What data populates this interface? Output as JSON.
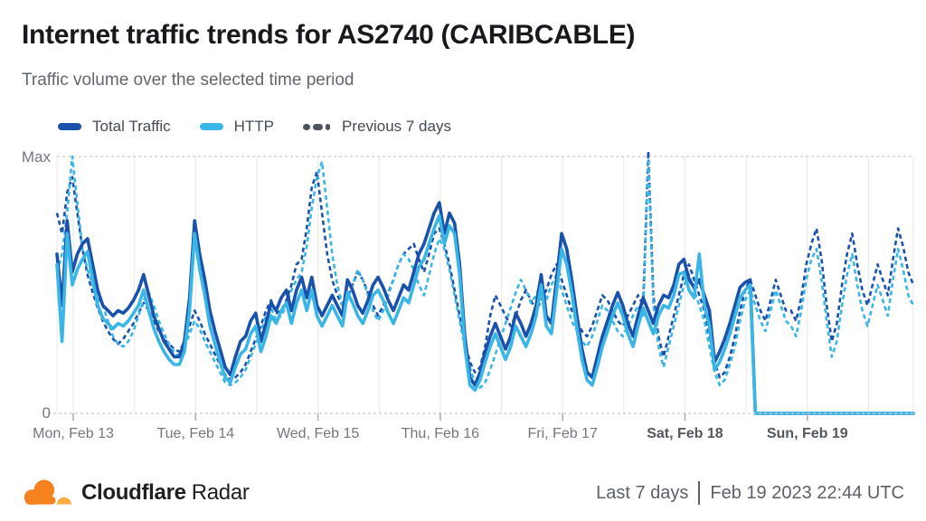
{
  "title": "Internet traffic trends for AS2740 (CARIBCABLE)",
  "subtitle": "Traffic volume over the selected time period",
  "legend": {
    "total_label": "Total Traffic",
    "http_label": "HTTP",
    "previous_label": "Previous 7 days"
  },
  "colors": {
    "total_traffic": "#1a52ab",
    "http": "#3ab6e6",
    "previous": "#4d545e",
    "grid": "#e5e7ea",
    "axis_dash": "#c7cbd1",
    "tick": "#a6abb3",
    "logo_orange": "#F6821F",
    "logo_light_orange": "#FBAD41"
  },
  "footer": {
    "brand_bold": "Cloudflare",
    "brand_regular": "Radar",
    "range_label": "Last 7 days",
    "timestamp": "Feb 19 2023 22:44 UTC"
  },
  "chart_data": {
    "type": "line",
    "title": "Internet traffic trends for AS2740 (CARIBCABLE)",
    "ylabel": "",
    "xlabel": "",
    "y_axis": {
      "max_label": "Max",
      "min_label": "0",
      "range": [
        0,
        100
      ],
      "unit": "percent_of_max"
    },
    "x_range_hours": 168,
    "tick_offset_hours": 3.2,
    "tick_interval_hours": 24,
    "gridline_interval_hours": 12,
    "grid": true,
    "legend_position": "top",
    "x_ticks": [
      {
        "label": "Mon, Feb 13",
        "bold": false
      },
      {
        "label": "Tue, Feb 14",
        "bold": false
      },
      {
        "label": "Wed, Feb 15",
        "bold": false
      },
      {
        "label": "Thu, Feb 16",
        "bold": false
      },
      {
        "label": "Fri, Feb 17",
        "bold": false
      },
      {
        "label": "Sat, Feb 18",
        "bold": true
      },
      {
        "label": "Sun, Feb 19",
        "bold": true
      }
    ],
    "series": [
      {
        "id": "previous-total-line",
        "name": "Total Traffic (previous 7 days)",
        "style": "dashed",
        "color": "#1a52ab",
        "values": [
          78,
          70,
          86,
          92,
          78,
          64,
          54,
          47,
          41,
          36,
          32,
          29,
          27,
          29,
          32,
          35,
          39,
          43,
          40,
          36,
          32,
          29,
          27,
          25,
          24,
          28,
          34,
          40,
          36,
          31,
          27,
          23,
          19,
          15,
          13,
          14,
          16,
          19,
          24,
          29,
          34,
          40,
          44,
          39,
          40,
          44,
          50,
          58,
          60,
          72,
          88,
          94,
          78,
          62,
          52,
          46,
          42,
          45,
          50,
          55,
          52,
          47,
          42,
          38,
          42,
          47,
          52,
          58,
          62,
          64,
          66,
          60,
          55,
          62,
          70,
          72,
          66,
          58,
          48,
          38,
          28,
          20,
          16,
          18,
          26,
          38,
          46,
          42,
          38,
          34,
          38,
          44,
          48,
          44,
          40,
          44,
          48,
          54,
          58,
          52,
          46,
          40,
          36,
          32,
          30,
          34,
          40,
          46,
          44,
          40,
          36,
          34,
          38,
          42,
          46,
          42,
          102,
          46,
          30,
          22,
          30,
          38,
          46,
          54,
          58,
          52,
          46,
          40,
          30,
          20,
          14,
          16,
          22,
          30,
          40,
          48,
          52,
          46,
          40,
          36,
          44,
          52,
          46,
          40,
          40,
          36,
          45,
          58,
          66,
          72,
          60,
          42,
          28,
          35,
          50,
          62,
          70,
          58,
          48,
          42,
          50,
          58,
          52,
          46,
          60,
          72,
          65,
          55,
          50
        ]
      },
      {
        "id": "previous-http-line",
        "name": "HTTP (previous 7 days)",
        "style": "dashed",
        "color": "#3ab6e6",
        "values": [
          55,
          62,
          78,
          100,
          82,
          64,
          56,
          50,
          45,
          42,
          36,
          30,
          27,
          26,
          28,
          32,
          38,
          44,
          47,
          42,
          36,
          31,
          27,
          24,
          22,
          26,
          31,
          36,
          33,
          28,
          24,
          20,
          16,
          12,
          11,
          12,
          14,
          17,
          22,
          27,
          32,
          38,
          41,
          36,
          38,
          42,
          48,
          52,
          55,
          65,
          80,
          92,
          98,
          80,
          62,
          50,
          42,
          44,
          50,
          56,
          52,
          46,
          40,
          36,
          40,
          46,
          52,
          58,
          62,
          60,
          56,
          50,
          46,
          54,
          62,
          68,
          64,
          56,
          46,
          36,
          26,
          18,
          12,
          10,
          12,
          17,
          23,
          29,
          35,
          41,
          47,
          52,
          48,
          43,
          46,
          51,
          44,
          50,
          54,
          48,
          42,
          36,
          32,
          28,
          26,
          30,
          36,
          42,
          40,
          36,
          32,
          30,
          34,
          38,
          42,
          38,
          99,
          42,
          26,
          18,
          26,
          34,
          42,
          50,
          54,
          48,
          42,
          36,
          26,
          16,
          11,
          13,
          19,
          26,
          36,
          44,
          48,
          42,
          36,
          32,
          40,
          48,
          42,
          36,
          34,
          30,
          40,
          52,
          60,
          64,
          52,
          36,
          22,
          28,
          42,
          54,
          62,
          50,
          40,
          34,
          42,
          50,
          44,
          38,
          52,
          64,
          56,
          46,
          42
        ]
      },
      {
        "id": "total-traffic-line",
        "name": "Total Traffic",
        "style": "solid",
        "color": "#1a52ab",
        "values": [
          62,
          42,
          75,
          55,
          62,
          66,
          68,
          58,
          48,
          42,
          40,
          38,
          40,
          39,
          41,
          44,
          48,
          54,
          46,
          38,
          33,
          28,
          25,
          22,
          22,
          28,
          45,
          75,
          62,
          52,
          40,
          32,
          25,
          18,
          15,
          22,
          28,
          30,
          36,
          39,
          28,
          35,
          43,
          40,
          45,
          48,
          40,
          48,
          53,
          45,
          53,
          42,
          38,
          42,
          46,
          42,
          38,
          52,
          48,
          42,
          39,
          44,
          50,
          53,
          49,
          44,
          40,
          45,
          50,
          48,
          55,
          62,
          66,
          72,
          78,
          82,
          70,
          78,
          74,
          58,
          30,
          14,
          11,
          16,
          24,
          30,
          35,
          30,
          25,
          30,
          39,
          35,
          30,
          35,
          42,
          54,
          38,
          35,
          52,
          70,
          64,
          52,
          38,
          25,
          16,
          14,
          22,
          30,
          36,
          42,
          47,
          42,
          35,
          30,
          38,
          45,
          40,
          35,
          42,
          46,
          45,
          50,
          58,
          60,
          52,
          49,
          52,
          46,
          40,
          20,
          24,
          29,
          35,
          42,
          49,
          51,
          52,
          0,
          0,
          0,
          0,
          0,
          0,
          0,
          0,
          0,
          0,
          0,
          0,
          0,
          0,
          0,
          0,
          0,
          0,
          0,
          0,
          0,
          0,
          0,
          0,
          0,
          0,
          0,
          0,
          0,
          0,
          0,
          0
        ]
      },
      {
        "id": "http-line",
        "name": "HTTP",
        "style": "solid",
        "color": "#3ab6e6",
        "values": [
          58,
          28,
          70,
          50,
          56,
          60,
          63,
          52,
          42,
          37,
          35,
          33,
          35,
          34,
          36,
          39,
          42,
          48,
          40,
          33,
          28,
          24,
          21,
          19,
          19,
          24,
          40,
          70,
          56,
          46,
          34,
          27,
          20,
          14,
          12,
          18,
          23,
          25,
          31,
          34,
          24,
          30,
          38,
          35,
          40,
          43,
          35,
          43,
          48,
          40,
          48,
          38,
          34,
          38,
          42,
          38,
          34,
          47,
          43,
          38,
          35,
          40,
          46,
          48,
          44,
          39,
          35,
          40,
          45,
          43,
          50,
          57,
          60,
          66,
          72,
          77,
          66,
          73,
          70,
          54,
          26,
          11,
          9,
          13,
          20,
          26,
          31,
          26,
          21,
          26,
          34,
          30,
          26,
          31,
          38,
          50,
          34,
          31,
          47,
          64,
          58,
          47,
          33,
          21,
          13,
          11,
          18,
          26,
          32,
          38,
          43,
          38,
          31,
          26,
          34,
          41,
          36,
          31,
          38,
          42,
          41,
          46,
          54,
          55,
          48,
          45,
          62,
          42,
          34,
          17,
          20,
          25,
          31,
          38,
          45,
          48,
          50,
          0,
          0,
          0,
          0,
          0,
          0,
          0,
          0,
          0,
          0,
          0,
          0,
          0,
          0,
          0,
          0,
          0,
          0,
          0,
          0,
          0,
          0,
          0,
          0,
          0,
          0,
          0,
          0,
          0,
          0,
          0,
          0
        ]
      }
    ]
  }
}
